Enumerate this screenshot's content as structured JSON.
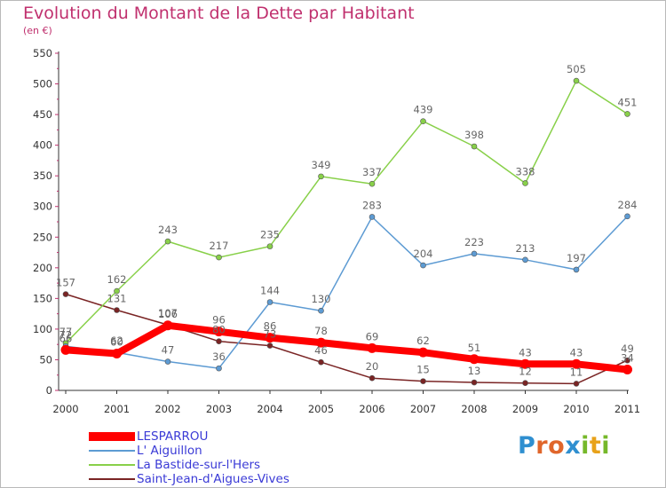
{
  "title": "Evolution du Montant de la Dette par Habitant",
  "subtitle": "(en €)",
  "logo": {
    "text": "Proxiti",
    "letters": [
      {
        "ch": "P",
        "color": "#2f8fd0"
      },
      {
        "ch": "r",
        "color": "#e0662b"
      },
      {
        "ch": "o",
        "color": "#e0662b"
      },
      {
        "ch": "x",
        "color": "#2f8fd0"
      },
      {
        "ch": "i",
        "color": "#76b82a"
      },
      {
        "ch": "t",
        "color": "#e8a21a"
      },
      {
        "ch": "i",
        "color": "#76b82a"
      }
    ]
  },
  "chart_data": {
    "type": "line",
    "title": "Evolution du Montant de la Dette par Habitant",
    "subtitle": "(en €)",
    "xlabel": "",
    "ylabel": "",
    "x": [
      2000,
      2001,
      2002,
      2003,
      2004,
      2005,
      2006,
      2007,
      2008,
      2009,
      2010,
      2011
    ],
    "ylim": [
      0,
      550
    ],
    "yticks": [
      0,
      50,
      100,
      150,
      200,
      250,
      300,
      350,
      400,
      450,
      500,
      550
    ],
    "grid": false,
    "legend_position": "bottom-left",
    "series": [
      {
        "name": "Saint-Jean-d'Aigues-Vives",
        "color": "#7a2424",
        "width": 1.5,
        "values": [
          157,
          131,
          107,
          80,
          73,
          46,
          20,
          15,
          13,
          12,
          11,
          49
        ],
        "labels": [
          "157",
          "131",
          "107",
          "80",
          "73",
          "46",
          "20",
          "15",
          "13",
          "12",
          "11",
          "49"
        ]
      },
      {
        "name": "La Bastide-sur-l'Hers",
        "color": "#88d049",
        "width": 1.5,
        "values": [
          77,
          162,
          243,
          217,
          235,
          349,
          337,
          439,
          398,
          338,
          505,
          451
        ],
        "labels": [
          "77",
          "162",
          "243",
          "217",
          "235",
          "349",
          "337",
          "439",
          "398",
          "338",
          "505",
          "451"
        ]
      },
      {
        "name": "L' Aiguillon",
        "color": "#5d9bd3",
        "width": 1.5,
        "values": [
          72,
          62,
          47,
          36,
          144,
          130,
          283,
          204,
          223,
          213,
          197,
          284
        ],
        "labels": [
          "72",
          "62",
          "47",
          "36",
          "144",
          "130",
          "283",
          "204",
          "223",
          "213",
          "197",
          "284"
        ]
      },
      {
        "name": "LESPARROU",
        "color": "#ff0000",
        "width": 8,
        "values": [
          66,
          60,
          106,
          96,
          86,
          78,
          69,
          62,
          51,
          43,
          43,
          34
        ],
        "labels": [
          "66",
          "60",
          "106",
          "96",
          "86",
          "78",
          "69",
          "62",
          "51",
          "43",
          "43",
          "34"
        ]
      }
    ],
    "legend": [
      "LESPARROU",
      "L' Aiguillon",
      "La Bastide-sur-l'Hers",
      "Saint-Jean-d'Aigues-Vives"
    ]
  },
  "colors": {
    "title": "#c0306e",
    "axis": "#333333",
    "tick_text": "#333333",
    "data_label": "#666666",
    "legend_text": "#3a3ad6"
  }
}
